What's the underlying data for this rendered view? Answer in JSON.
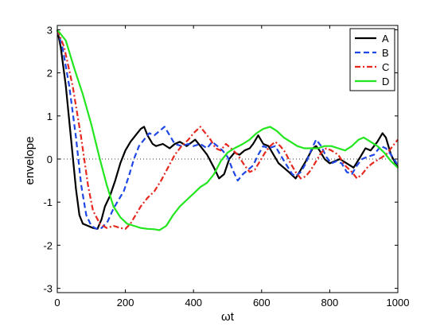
{
  "chart_data": {
    "type": "line",
    "xlabel": "ωt",
    "ylabel": "envelope",
    "xlim": [
      0,
      1000
    ],
    "ylim": [
      -3.1,
      3.1
    ],
    "xticks": [
      0,
      200,
      400,
      600,
      800,
      1000
    ],
    "yticks": [
      -3,
      -2,
      -1,
      0,
      1,
      2,
      3
    ],
    "grid": false,
    "legend_position": "top-right",
    "reference_line": {
      "y": 0,
      "style": "dotted"
    },
    "series": [
      {
        "name": "A",
        "color": "#000000",
        "dash": "solid",
        "points": [
          [
            0,
            3.0
          ],
          [
            10,
            2.6
          ],
          [
            25,
            1.7
          ],
          [
            40,
            0.5
          ],
          [
            55,
            -0.7
          ],
          [
            65,
            -1.3
          ],
          [
            75,
            -1.5
          ],
          [
            90,
            -1.55
          ],
          [
            105,
            -1.6
          ],
          [
            118,
            -1.62
          ],
          [
            130,
            -1.4
          ],
          [
            140,
            -1.1
          ],
          [
            155,
            -0.85
          ],
          [
            170,
            -0.5
          ],
          [
            185,
            -0.1
          ],
          [
            200,
            0.2
          ],
          [
            215,
            0.4
          ],
          [
            230,
            0.55
          ],
          [
            245,
            0.7
          ],
          [
            255,
            0.75
          ],
          [
            265,
            0.55
          ],
          [
            280,
            0.35
          ],
          [
            290,
            0.3
          ],
          [
            310,
            0.35
          ],
          [
            330,
            0.25
          ],
          [
            345,
            0.35
          ],
          [
            360,
            0.4
          ],
          [
            380,
            0.3
          ],
          [
            405,
            0.45
          ],
          [
            420,
            0.3
          ],
          [
            440,
            0.1
          ],
          [
            460,
            -0.2
          ],
          [
            475,
            -0.45
          ],
          [
            490,
            -0.35
          ],
          [
            505,
            0.0
          ],
          [
            520,
            0.15
          ],
          [
            535,
            0.1
          ],
          [
            550,
            0.2
          ],
          [
            565,
            0.25
          ],
          [
            575,
            0.35
          ],
          [
            590,
            0.55
          ],
          [
            605,
            0.35
          ],
          [
            620,
            0.3
          ],
          [
            635,
            0.1
          ],
          [
            650,
            -0.1
          ],
          [
            665,
            -0.2
          ],
          [
            680,
            -0.3
          ],
          [
            700,
            -0.45
          ],
          [
            715,
            -0.25
          ],
          [
            730,
            -0.05
          ],
          [
            750,
            0.25
          ],
          [
            760,
            0.3
          ],
          [
            770,
            0.2
          ],
          [
            785,
            0.0
          ],
          [
            800,
            -0.1
          ],
          [
            815,
            -0.05
          ],
          [
            830,
            0.0
          ],
          [
            850,
            -0.1
          ],
          [
            870,
            -0.2
          ],
          [
            890,
            0.05
          ],
          [
            905,
            0.25
          ],
          [
            920,
            0.2
          ],
          [
            940,
            0.4
          ],
          [
            955,
            0.6
          ],
          [
            965,
            0.5
          ],
          [
            980,
            0.1
          ],
          [
            1000,
            -0.2
          ]
        ]
      },
      {
        "name": "B",
        "color": "#1f47e6",
        "dash": "dashed",
        "points": [
          [
            0,
            3.0
          ],
          [
            15,
            2.6
          ],
          [
            35,
            1.7
          ],
          [
            55,
            0.5
          ],
          [
            70,
            -0.6
          ],
          [
            85,
            -1.3
          ],
          [
            100,
            -1.55
          ],
          [
            115,
            -1.62
          ],
          [
            130,
            -1.6
          ],
          [
            148,
            -1.45
          ],
          [
            165,
            -1.15
          ],
          [
            180,
            -0.95
          ],
          [
            195,
            -0.75
          ],
          [
            210,
            -0.4
          ],
          [
            225,
            0.0
          ],
          [
            240,
            0.3
          ],
          [
            255,
            0.45
          ],
          [
            270,
            0.6
          ],
          [
            285,
            0.55
          ],
          [
            300,
            0.65
          ],
          [
            315,
            0.75
          ],
          [
            330,
            0.55
          ],
          [
            345,
            0.35
          ],
          [
            365,
            0.3
          ],
          [
            385,
            0.35
          ],
          [
            400,
            0.3
          ],
          [
            420,
            0.35
          ],
          [
            440,
            0.25
          ],
          [
            455,
            0.4
          ],
          [
            470,
            0.3
          ],
          [
            485,
            0.2
          ],
          [
            500,
            0.05
          ],
          [
            515,
            -0.25
          ],
          [
            530,
            -0.5
          ],
          [
            545,
            -0.35
          ],
          [
            560,
            -0.25
          ],
          [
            575,
            -0.15
          ],
          [
            590,
            0.1
          ],
          [
            605,
            0.3
          ],
          [
            620,
            0.25
          ],
          [
            640,
            0.3
          ],
          [
            655,
            0.1
          ],
          [
            670,
            -0.1
          ],
          [
            690,
            -0.35
          ],
          [
            700,
            -0.4
          ],
          [
            715,
            -0.3
          ],
          [
            730,
            -0.1
          ],
          [
            745,
            0.2
          ],
          [
            760,
            0.45
          ],
          [
            775,
            0.3
          ],
          [
            790,
            0.05
          ],
          [
            805,
            -0.1
          ],
          [
            820,
            -0.05
          ],
          [
            835,
            -0.1
          ],
          [
            850,
            -0.3
          ],
          [
            865,
            -0.35
          ],
          [
            880,
            -0.15
          ],
          [
            895,
            0.0
          ],
          [
            910,
            0.05
          ],
          [
            930,
            0.1
          ],
          [
            950,
            0.3
          ],
          [
            965,
            0.25
          ],
          [
            985,
            0.05
          ],
          [
            1000,
            -0.15
          ]
        ]
      },
      {
        "name": "C",
        "color": "#e6281e",
        "dash": "dashdot",
        "points": [
          [
            0,
            3.0
          ],
          [
            20,
            2.6
          ],
          [
            45,
            1.7
          ],
          [
            70,
            0.5
          ],
          [
            90,
            -0.6
          ],
          [
            105,
            -1.2
          ],
          [
            125,
            -1.5
          ],
          [
            145,
            -1.6
          ],
          [
            165,
            -1.55
          ],
          [
            185,
            -1.6
          ],
          [
            200,
            -1.62
          ],
          [
            215,
            -1.5
          ],
          [
            230,
            -1.3
          ],
          [
            245,
            -1.1
          ],
          [
            265,
            -0.9
          ],
          [
            285,
            -0.75
          ],
          [
            305,
            -0.5
          ],
          [
            325,
            -0.2
          ],
          [
            345,
            0.1
          ],
          [
            365,
            0.3
          ],
          [
            385,
            0.45
          ],
          [
            400,
            0.6
          ],
          [
            420,
            0.75
          ],
          [
            435,
            0.6
          ],
          [
            450,
            0.45
          ],
          [
            465,
            0.25
          ],
          [
            480,
            0.2
          ],
          [
            495,
            0.35
          ],
          [
            510,
            0.25
          ],
          [
            530,
            0.1
          ],
          [
            550,
            -0.15
          ],
          [
            565,
            -0.3
          ],
          [
            580,
            -0.25
          ],
          [
            595,
            -0.05
          ],
          [
            610,
            0.15
          ],
          [
            625,
            0.3
          ],
          [
            640,
            0.4
          ],
          [
            655,
            0.3
          ],
          [
            670,
            0.15
          ],
          [
            685,
            -0.1
          ],
          [
            700,
            -0.3
          ],
          [
            715,
            -0.45
          ],
          [
            730,
            -0.4
          ],
          [
            745,
            -0.25
          ],
          [
            760,
            -0.05
          ],
          [
            775,
            0.15
          ],
          [
            790,
            0.25
          ],
          [
            805,
            0.2
          ],
          [
            825,
            0.1
          ],
          [
            845,
            -0.15
          ],
          [
            865,
            -0.3
          ],
          [
            880,
            -0.45
          ],
          [
            895,
            -0.35
          ],
          [
            910,
            -0.2
          ],
          [
            925,
            -0.1
          ],
          [
            945,
            0.0
          ],
          [
            965,
            0.1
          ],
          [
            985,
            0.3
          ],
          [
            1000,
            0.45
          ]
        ]
      },
      {
        "name": "D",
        "color": "#22e61e",
        "dash": "solid",
        "points": [
          [
            0,
            3.0
          ],
          [
            25,
            2.75
          ],
          [
            50,
            2.1
          ],
          [
            75,
            1.5
          ],
          [
            100,
            0.8
          ],
          [
            125,
            0.0
          ],
          [
            145,
            -0.6
          ],
          [
            165,
            -1.1
          ],
          [
            185,
            -1.35
          ],
          [
            205,
            -1.5
          ],
          [
            225,
            -1.55
          ],
          [
            245,
            -1.6
          ],
          [
            265,
            -1.62
          ],
          [
            285,
            -1.63
          ],
          [
            300,
            -1.65
          ],
          [
            320,
            -1.55
          ],
          [
            340,
            -1.3
          ],
          [
            360,
            -1.1
          ],
          [
            380,
            -0.95
          ],
          [
            400,
            -0.8
          ],
          [
            420,
            -0.65
          ],
          [
            440,
            -0.55
          ],
          [
            460,
            -0.35
          ],
          [
            480,
            -0.05
          ],
          [
            500,
            0.15
          ],
          [
            520,
            0.25
          ],
          [
            545,
            0.35
          ],
          [
            565,
            0.45
          ],
          [
            585,
            0.6
          ],
          [
            605,
            0.7
          ],
          [
            625,
            0.75
          ],
          [
            645,
            0.65
          ],
          [
            665,
            0.5
          ],
          [
            685,
            0.4
          ],
          [
            705,
            0.3
          ],
          [
            725,
            0.25
          ],
          [
            745,
            0.25
          ],
          [
            765,
            0.25
          ],
          [
            785,
            0.3
          ],
          [
            805,
            0.3
          ],
          [
            825,
            0.25
          ],
          [
            845,
            0.2
          ],
          [
            865,
            0.3
          ],
          [
            885,
            0.45
          ],
          [
            900,
            0.5
          ],
          [
            920,
            0.4
          ],
          [
            940,
            0.3
          ],
          [
            960,
            0.15
          ],
          [
            980,
            -0.05
          ],
          [
            1000,
            -0.2
          ]
        ]
      }
    ]
  }
}
